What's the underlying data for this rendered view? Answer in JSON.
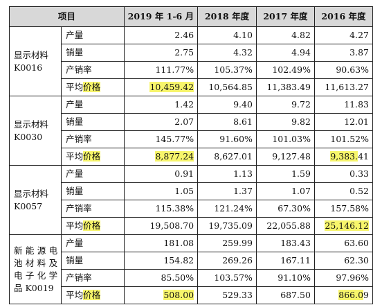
{
  "header": [
    "项目",
    "2019 年 1-6 月",
    "2018 年度",
    "2017 年度",
    "2016 年度"
  ],
  "groups": [
    {
      "name_lines": [
        "显示材料",
        "K0016"
      ],
      "rows": [
        {
          "label": "产量",
          "values": [
            "2.46",
            "4.10",
            "4.82",
            "4.27"
          ]
        },
        {
          "label": "销量",
          "values": [
            "2.75",
            "4.32",
            "4.94",
            "3.87"
          ]
        },
        {
          "label": "产销率",
          "values": [
            "111.77%",
            "105.37%",
            "102.49%",
            "90.63%"
          ]
        },
        {
          "label_plain": "平均",
          "label_hl": "价格",
          "values": [
            "10,459.42",
            "10,564.85",
            "11,383.49",
            "11,613.27"
          ]
        }
      ]
    },
    {
      "name_lines": [
        "显示材料",
        "K0030"
      ],
      "rows": [
        {
          "label": "产量",
          "values": [
            "1.42",
            "9.40",
            "9.72",
            "11.83"
          ]
        },
        {
          "label": "销量",
          "values": [
            "2.07",
            "8.61",
            "9.82",
            "12.01"
          ]
        },
        {
          "label": "产销率",
          "values": [
            "145.77%",
            "91.60%",
            "101.03%",
            "101.52%"
          ]
        },
        {
          "label_plain": "平均",
          "label_hl": "价格",
          "values": [
            "8,877.24",
            "8,627.01",
            "9,127.48",
            "9,383.41"
          ],
          "v3_hl": "9,383.",
          "v3_rest": "41"
        }
      ]
    },
    {
      "name_lines": [
        "显示材料",
        "K0057"
      ],
      "rows": [
        {
          "label": "产量",
          "values": [
            "0.91",
            "1.13",
            "1.59",
            "0.33"
          ]
        },
        {
          "label": "销量",
          "values": [
            "1.05",
            "1.37",
            "1.07",
            "0.52"
          ]
        },
        {
          "label": "产销率",
          "values": [
            "115.38%",
            "121.24%",
            "67.30%",
            "157.58%"
          ]
        },
        {
          "label_plain": "平均",
          "label_hl": "价格",
          "values": [
            "19,508.70",
            "19,735.09",
            "22,055.88",
            "25,146.12"
          ]
        }
      ]
    },
    {
      "name_lines": [
        "新能源电",
        "池材料及",
        "电子化学",
        "品 K0019"
      ],
      "rows": [
        {
          "label": "产量",
          "values": [
            "181.08",
            "259.99",
            "183.43",
            "63.60"
          ]
        },
        {
          "label": "销量",
          "values": [
            "154.82",
            "269.26",
            "167.11",
            "62.30"
          ]
        },
        {
          "label": "产销率",
          "values": [
            "85.50%",
            "103.57%",
            "91.10%",
            "97.96%"
          ]
        },
        {
          "label_plain": "平均",
          "label_hl": "价格",
          "values": [
            "508.00",
            "529.33",
            "687.50",
            "866.09"
          ],
          "v3_hl": "866.0",
          "v3_rest": "9"
        }
      ]
    }
  ]
}
